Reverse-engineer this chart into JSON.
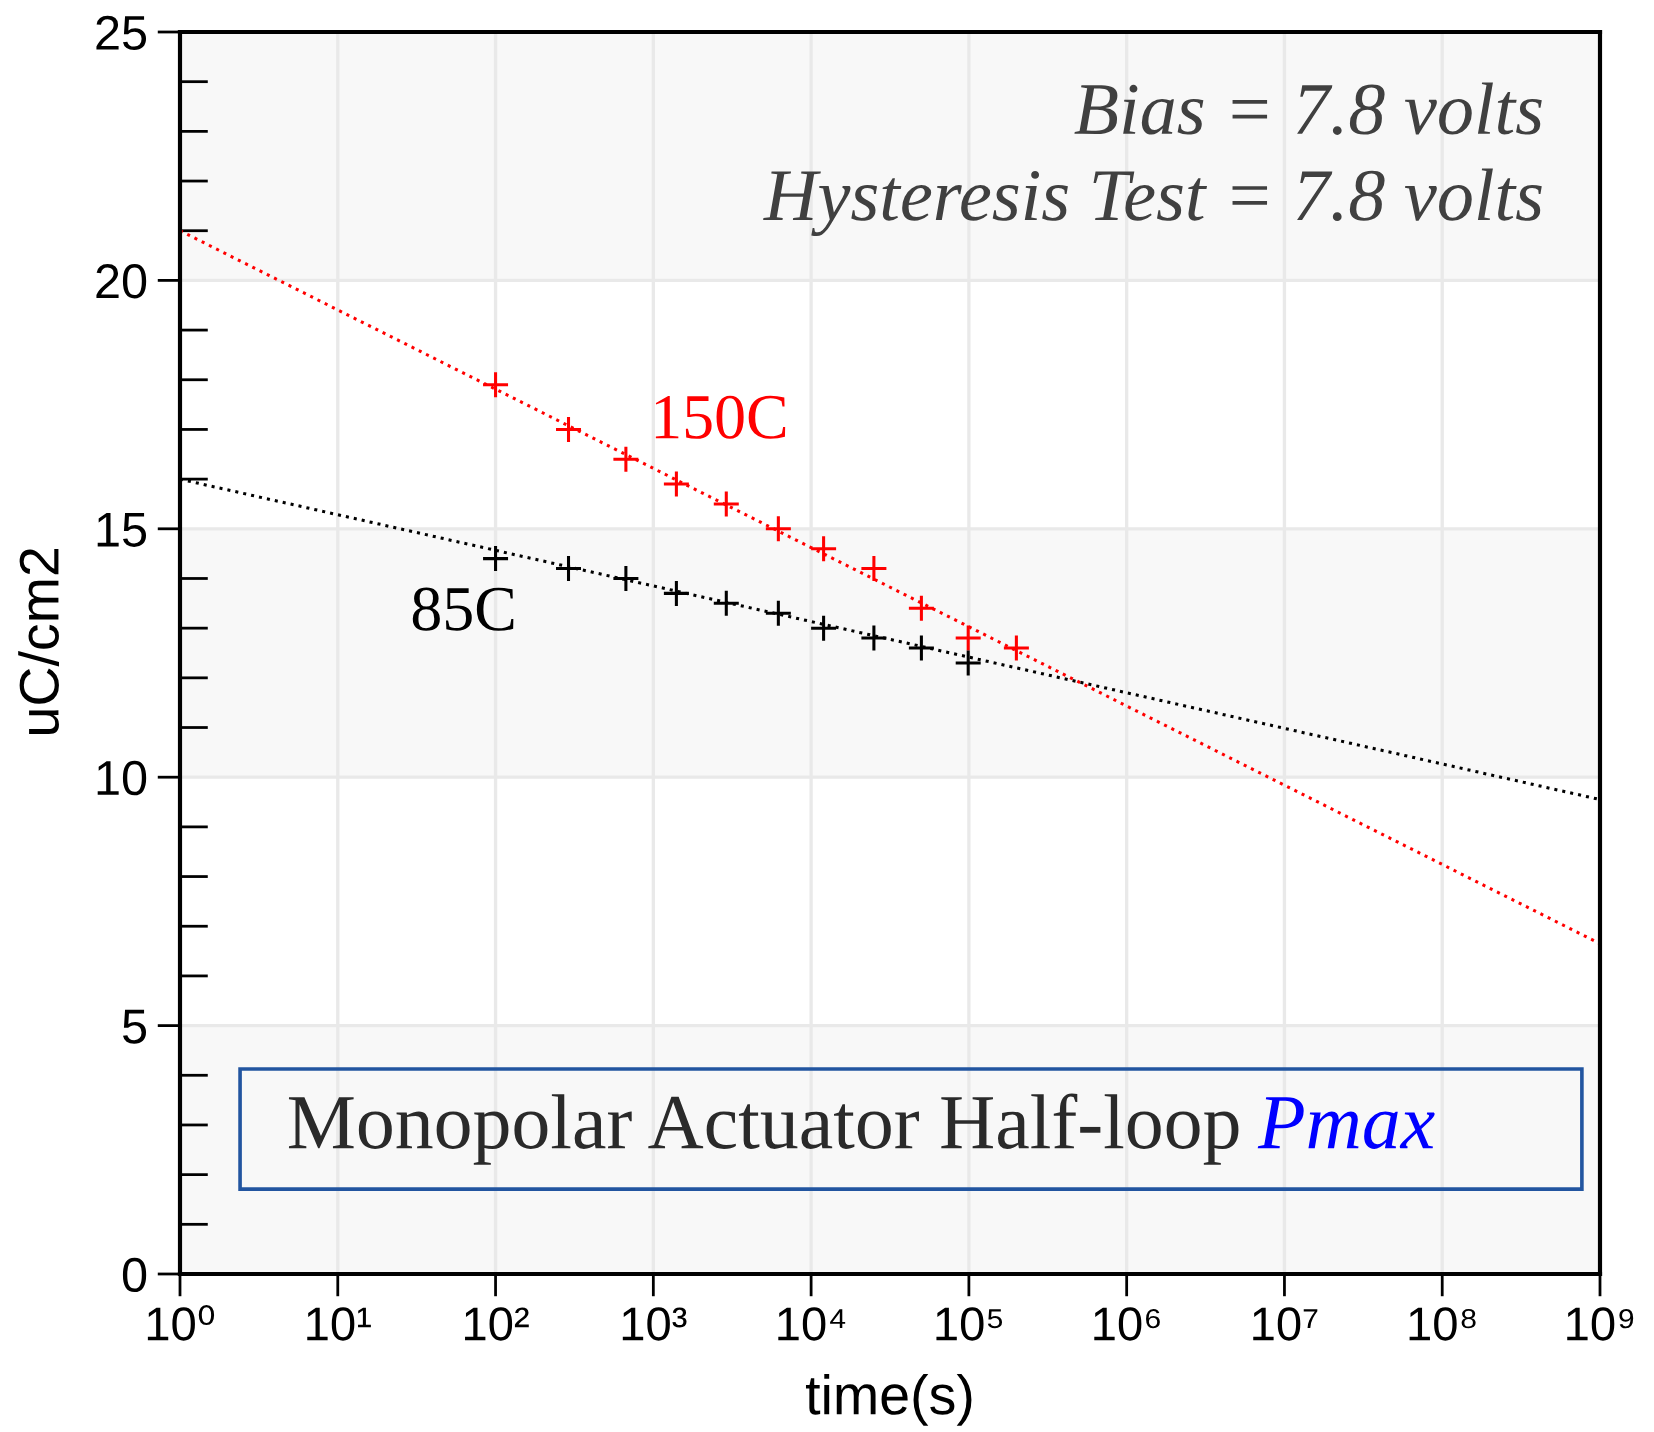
{
  "chart_data": {
    "type": "scatter",
    "xlabel": "time(s)",
    "ylabel": "uC/cm2",
    "log": "x",
    "grid": true,
    "xlim": [
      1,
      1000000000
    ],
    "xticks": [
      {
        "value": 1,
        "label": "10⁰"
      },
      {
        "value": 10,
        "label": "10¹"
      },
      {
        "value": 100,
        "label": "10²"
      },
      {
        "value": 1000,
        "label": "10³"
      },
      {
        "value": 10000,
        "label": "10⁴"
      },
      {
        "value": 100000,
        "label": "10⁵"
      },
      {
        "value": 1000000,
        "label": "10⁶"
      },
      {
        "value": 10000000,
        "label": "10⁷"
      },
      {
        "value": 100000000,
        "label": "10⁸"
      },
      {
        "value": 1000000000,
        "label": "10⁹"
      }
    ],
    "ylim": [
      0,
      25
    ],
    "yticks": [
      0,
      {
        "value": 1,
        "label": null
      },
      {
        "value": 2,
        "label": null
      },
      {
        "value": 3,
        "label": null
      },
      {
        "value": 4,
        "label": null
      },
      5,
      {
        "value": 6,
        "label": null
      },
      {
        "value": 7,
        "label": null
      },
      {
        "value": 8,
        "label": null
      },
      {
        "value": 9,
        "label": null
      },
      10,
      {
        "value": 11,
        "label": null
      },
      {
        "value": 12,
        "label": null
      },
      {
        "value": 13,
        "label": null
      },
      {
        "value": 14,
        "label": null
      },
      15,
      {
        "value": 16,
        "label": null
      },
      {
        "value": 17,
        "label": null
      },
      {
        "value": 18,
        "label": null
      },
      {
        "value": 19,
        "label": null
      },
      20,
      {
        "value": 21,
        "label": null
      },
      {
        "value": 22,
        "label": null
      },
      {
        "value": 23,
        "label": null
      },
      {
        "value": 24,
        "label": null
      },
      25
    ],
    "bands": [
      {
        "axis": "y",
        "from": 0,
        "to": 5,
        "color": "#f8f8f8"
      },
      {
        "axis": "y",
        "from": 10,
        "to": 15,
        "color": "#f8f8f8"
      },
      {
        "axis": "y",
        "from": 20,
        "to": 25,
        "color": "#f8f8f8"
      }
    ],
    "annotations": [
      "Bias = 7.8 volts",
      "Hysteresis Test = 7.8 volts",
      "Monopolar Actuator Half-loop",
      "Pmax"
    ],
    "series": [
      {
        "name": "150C",
        "color": "#ff0000",
        "marker": "cross",
        "x": [
          100,
          290,
          670,
          1400,
          2900,
          6200,
          12000,
          25000,
          50000,
          99000,
          200000
        ],
        "values": [
          17.9,
          17.0,
          16.4,
          15.9,
          15.5,
          15.0,
          14.6,
          14.2,
          13.4,
          12.8,
          12.6
        ]
      },
      {
        "name": "85C",
        "color": "#000000",
        "marker": "cross",
        "x": [
          100,
          290,
          670,
          1400,
          2900,
          6200,
          12000,
          25000,
          50000,
          99000
        ],
        "values": [
          14.4,
          14.2,
          14.0,
          13.7,
          13.5,
          13.3,
          13.0,
          12.8,
          12.6,
          12.3
        ]
      },
      {
        "type": "line",
        "color": "#ff0000",
        "line_style": "dotted",
        "x": [
          1,
          1000000000
        ],
        "values": [
          21.0,
          6.65
        ]
      },
      {
        "type": "line",
        "color": "#000000",
        "line_style": "dotted",
        "x": [
          1,
          1000000000
        ],
        "values": [
          16.0,
          9.55
        ]
      }
    ]
  }
}
